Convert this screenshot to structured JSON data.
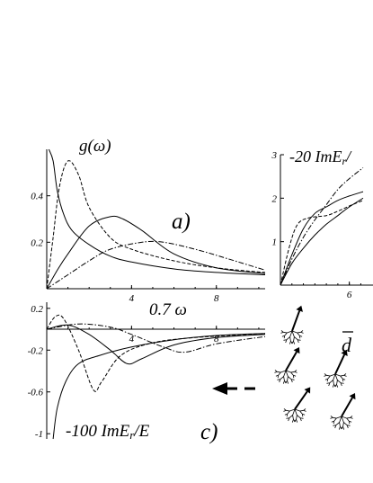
{
  "chart_data": [
    {
      "type": "line",
      "label": "a)",
      "ylabel": "g(ω)",
      "xlabel": "0.7 ω",
      "xlim": [
        0,
        10.3
      ],
      "ylim": [
        0,
        0.6
      ],
      "x_ticks": [
        "4",
        "8"
      ],
      "y_ticks": [
        "0.2",
        "0.4"
      ],
      "series": [
        {
          "style": "solid",
          "points": [
            [
              0.1,
              0.6
            ],
            [
              0.3,
              0.55
            ],
            [
              0.5,
              0.42
            ],
            [
              0.8,
              0.32
            ],
            [
              1.2,
              0.25
            ],
            [
              2,
              0.19
            ],
            [
              3,
              0.14
            ],
            [
              4,
              0.115
            ],
            [
              6,
              0.085
            ],
            [
              8,
              0.07
            ],
            [
              10.3,
              0.06
            ]
          ]
        },
        {
          "style": "dashed",
          "points": [
            [
              0,
              0
            ],
            [
              0.3,
              0.22
            ],
            [
              0.6,
              0.44
            ],
            [
              1,
              0.55
            ],
            [
              1.5,
              0.49
            ],
            [
              2,
              0.35
            ],
            [
              3,
              0.22
            ],
            [
              4,
              0.17
            ],
            [
              6,
              0.12
            ],
            [
              8,
              0.09
            ],
            [
              10.3,
              0.07
            ]
          ]
        },
        {
          "style": "solid",
          "points": [
            [
              0,
              0
            ],
            [
              0.5,
              0.08
            ],
            [
              1,
              0.15
            ],
            [
              2,
              0.27
            ],
            [
              3,
              0.31
            ],
            [
              3.6,
              0.3
            ],
            [
              4.5,
              0.25
            ],
            [
              6,
              0.15
            ],
            [
              8,
              0.09
            ],
            [
              10.3,
              0.065
            ]
          ]
        },
        {
          "style": "dashdot",
          "points": [
            [
              0,
              0
            ],
            [
              1,
              0.06
            ],
            [
              2,
              0.12
            ],
            [
              3,
              0.17
            ],
            [
              4.5,
              0.2
            ],
            [
              5.5,
              0.2
            ],
            [
              7,
              0.17
            ],
            [
              8.5,
              0.13
            ],
            [
              10.3,
              0.08
            ]
          ]
        }
      ]
    },
    {
      "type": "line",
      "label": "c)",
      "ylabel": "-100 ImE",
      "ylabel_sub": "r",
      "ylabel_tail": "/E",
      "xlim": [
        0,
        10.3
      ],
      "ylim": [
        -1.05,
        0.25
      ],
      "x_ticks": [
        "4",
        "8"
      ],
      "y_ticks": [
        "0.2",
        "-0.2",
        "-0.6",
        "-1"
      ],
      "series": [
        {
          "style": "solid",
          "points": [
            [
              0.3,
              -1.05
            ],
            [
              0.5,
              -0.75
            ],
            [
              0.9,
              -0.5
            ],
            [
              1.5,
              -0.33
            ],
            [
              2.5,
              -0.25
            ],
            [
              4,
              -0.17
            ],
            [
              6,
              -0.1
            ],
            [
              8,
              -0.06
            ],
            [
              10.3,
              -0.04
            ]
          ]
        },
        {
          "style": "dashed",
          "points": [
            [
              0,
              0
            ],
            [
              0.4,
              0.12
            ],
            [
              0.8,
              0.1
            ],
            [
              1.5,
              -0.2
            ],
            [
              2.2,
              -0.58
            ],
            [
              2.6,
              -0.5
            ],
            [
              3.5,
              -0.25
            ],
            [
              5,
              -0.13
            ],
            [
              7,
              -0.08
            ],
            [
              10.3,
              -0.04
            ]
          ]
        },
        {
          "style": "solid",
          "points": [
            [
              0,
              0
            ],
            [
              1,
              0.04
            ],
            [
              2,
              -0.05
            ],
            [
              3,
              -0.2
            ],
            [
              3.8,
              -0.33
            ],
            [
              4.5,
              -0.28
            ],
            [
              6,
              -0.15
            ],
            [
              8,
              -0.08
            ],
            [
              10.3,
              -0.05
            ]
          ]
        },
        {
          "style": "dashdot",
          "points": [
            [
              0,
              0
            ],
            [
              1.5,
              0.05
            ],
            [
              3,
              0.02
            ],
            [
              4,
              -0.05
            ],
            [
              5.5,
              -0.17
            ],
            [
              6.5,
              -0.22
            ],
            [
              8,
              -0.14
            ],
            [
              10.3,
              -0.07
            ]
          ]
        }
      ]
    },
    {
      "type": "line",
      "label": "",
      "ylabel": "-20 ImE",
      "ylabel_sub": "r",
      "ylabel_tail": "/",
      "xlim": [
        0,
        7.2
      ],
      "ylim": [
        0,
        3
      ],
      "x_ticks": [
        "6"
      ],
      "y_ticks": [
        "1",
        "2",
        "3"
      ],
      "series": [
        {
          "style": "solid",
          "points": [
            [
              0,
              0
            ],
            [
              1,
              0.5
            ],
            [
              2,
              0.85
            ],
            [
              3,
              1.15
            ],
            [
              4,
              1.4
            ],
            [
              5,
              1.6
            ],
            [
              6,
              1.8
            ],
            [
              7.2,
              2.0
            ]
          ]
        },
        {
          "style": "solid",
          "points": [
            [
              0,
              0
            ],
            [
              1,
              0.7
            ],
            [
              2,
              1.3
            ],
            [
              3,
              1.65
            ],
            [
              4,
              1.8
            ],
            [
              5,
              1.95
            ],
            [
              6,
              2.05
            ],
            [
              7.2,
              2.15
            ]
          ]
        },
        {
          "style": "dashed",
          "points": [
            [
              0,
              0
            ],
            [
              0.8,
              0.9
            ],
            [
              1.5,
              1.4
            ],
            [
              2.5,
              1.55
            ],
            [
              4,
              1.6
            ],
            [
              5,
              1.7
            ],
            [
              6,
              1.82
            ],
            [
              7.2,
              1.95
            ]
          ]
        },
        {
          "style": "dashdot",
          "points": [
            [
              0,
              0
            ],
            [
              1,
              0.6
            ],
            [
              2,
              1.1
            ],
            [
              3,
              1.5
            ],
            [
              4,
              1.85
            ],
            [
              5,
              2.2
            ],
            [
              6,
              2.45
            ],
            [
              7.2,
              2.7
            ]
          ]
        }
      ]
    }
  ],
  "overbar_label": "d",
  "arrow_present": true
}
